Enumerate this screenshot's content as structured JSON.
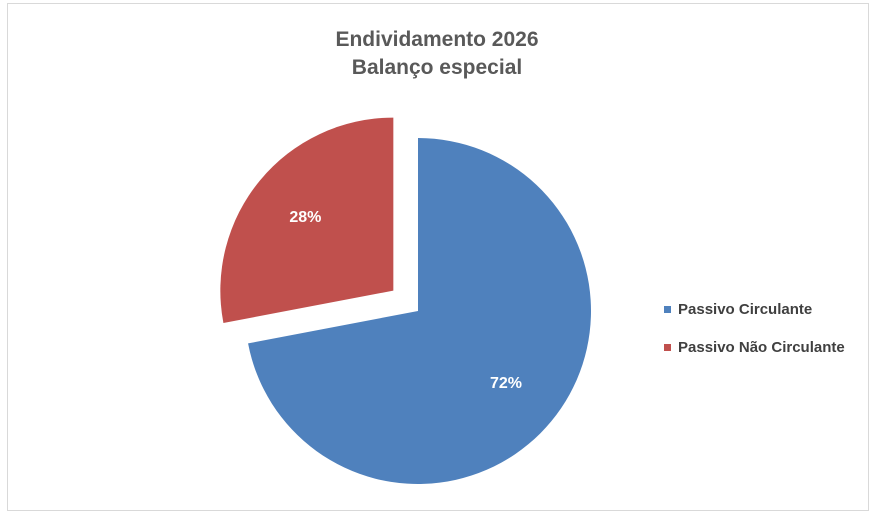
{
  "chart_data": {
    "type": "pie",
    "title": "Endividamento 2026",
    "subtitle": "Balanço especial",
    "slices": [
      {
        "label": "Passivo Circulante",
        "value": 72,
        "display": "72%",
        "color": "#4f81bd"
      },
      {
        "label": "Passivo Não Circulante",
        "value": 28,
        "display": "28%",
        "color": "#c0504d",
        "exploded": true
      }
    ],
    "legend_position": "right",
    "data_label_color": "#ffffff"
  }
}
